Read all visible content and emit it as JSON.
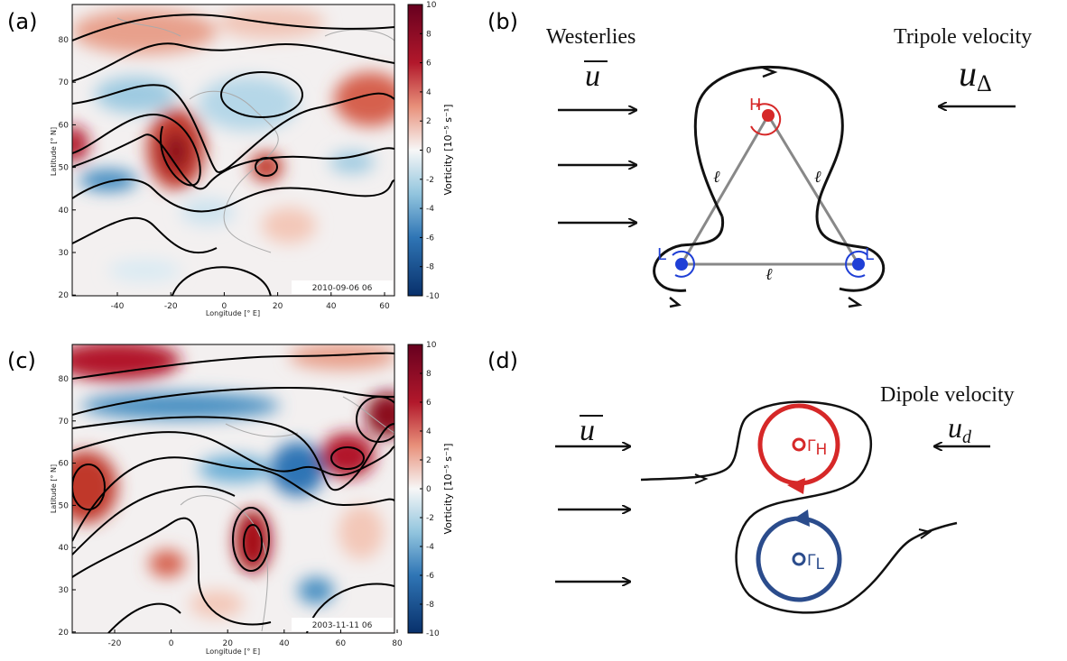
{
  "panel_a": {
    "label": "(a)",
    "x_label": "Longitude [° E]",
    "y_label": "Latitude [° N]",
    "x_ticks": [
      -40,
      -20,
      0,
      20,
      40,
      60
    ],
    "y_ticks": [
      80,
      70,
      60,
      50,
      40,
      30,
      20
    ],
    "colorbar_label": "Vorticity [10⁻⁵ s⁻¹]",
    "colorbar_ticks": [
      10,
      8,
      6,
      4,
      2,
      0,
      -2,
      -4,
      -6,
      -8,
      -10
    ],
    "timestamp": "2010-09-06 06"
  },
  "panel_b": {
    "label": "(b)",
    "westerlies": "Westerlies",
    "mean_flow_symbol": "u",
    "tripole_velocity": "Tripole velocity",
    "tripole_symbol": "u",
    "tripole_subscript": "Δ",
    "high": "H",
    "low_left": "L",
    "low_right": "L",
    "side_labels": [
      "ℓ",
      "ℓ",
      "ℓ"
    ]
  },
  "panel_c": {
    "label": "(c)",
    "x_label": "Longitude [° E]",
    "y_label": "Latitude [° N]",
    "x_ticks": [
      -20,
      0,
      20,
      40,
      60,
      80
    ],
    "y_ticks": [
      80,
      70,
      60,
      50,
      40,
      30,
      20
    ],
    "colorbar_label": "Vorticity [10⁻⁵ s⁻¹]",
    "colorbar_ticks": [
      10,
      8,
      6,
      4,
      2,
      0,
      -2,
      -4,
      -6,
      -8,
      -10
    ],
    "timestamp": "2003-11-11 06"
  },
  "panel_d": {
    "label": "(d)",
    "mean_flow_symbol": "u",
    "dipole_velocity": "Dipole velocity",
    "dipole_symbol": "u",
    "dipole_subscript": "d",
    "gamma_high": "Γ",
    "gamma_high_sub": "H",
    "gamma_low": "Γ",
    "gamma_low_sub": "L"
  }
}
